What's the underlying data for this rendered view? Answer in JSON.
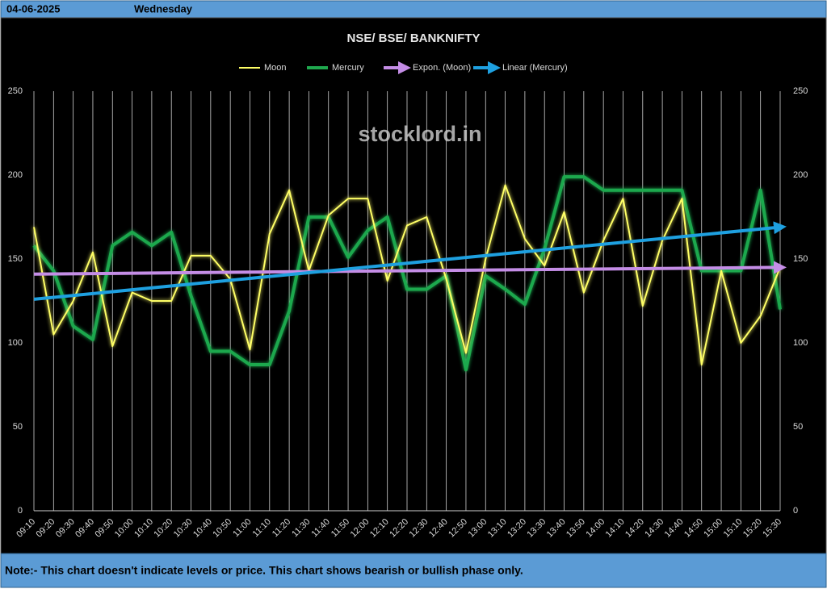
{
  "header": {
    "date": "04-06-2025",
    "weekday": "Wednesday"
  },
  "chart_data": {
    "type": "line",
    "title": "NSE/ BSE/ BANKNIFTY",
    "watermark": "stocklord.in",
    "categories": [
      "09:10",
      "09:20",
      "09:30",
      "09:40",
      "09:50",
      "10:00",
      "10:10",
      "10:20",
      "10:30",
      "10:40",
      "10:50",
      "11:00",
      "11:10",
      "11:20",
      "11:30",
      "11:40",
      "11:50",
      "12:00",
      "12:10",
      "12:20",
      "12:30",
      "12:40",
      "12:50",
      "13:00",
      "13:10",
      "13:20",
      "13:30",
      "13:40",
      "13:50",
      "14:00",
      "14:10",
      "14:20",
      "14:30",
      "14:40",
      "14:50",
      "15:00",
      "15:10",
      "15:20",
      "15:30"
    ],
    "series": [
      {
        "name": "Moon",
        "color": "#ffff66",
        "width": 2,
        "values": [
          169,
          105,
          125,
          154,
          98,
          130,
          125,
          125,
          152,
          152,
          138,
          96,
          165,
          191,
          143,
          176,
          186,
          186,
          137,
          170,
          175,
          138,
          94,
          150,
          194,
          162,
          146,
          178,
          130,
          161,
          186,
          122,
          161,
          186,
          87,
          143,
          100,
          116,
          145
        ]
      },
      {
        "name": "Mercury",
        "color": "#1fa84e",
        "width": 4,
        "values": [
          158,
          143,
          110,
          102,
          158,
          166,
          158,
          166,
          128,
          95,
          95,
          87,
          87,
          119,
          175,
          175,
          151,
          167,
          175,
          132,
          132,
          140,
          84,
          140,
          132,
          123,
          156,
          199,
          199,
          191,
          191,
          191,
          191,
          191,
          143,
          143,
          143,
          191,
          120
        ]
      }
    ],
    "trendlines": [
      {
        "name": "Expon. (Moon)",
        "color": "#c48de6",
        "values": [
          141,
          145
        ]
      },
      {
        "name": "Linear (Mercury)",
        "color": "#1ea0e0",
        "values": [
          126,
          169
        ]
      }
    ],
    "ylim": [
      0,
      250
    ],
    "yticks": [
      0,
      50,
      100,
      150,
      200,
      250
    ],
    "y2lim": [
      0,
      250
    ],
    "y2ticks": [
      0,
      50,
      100,
      150,
      200,
      250
    ],
    "grid": "x",
    "legend": "top"
  },
  "footer": {
    "note": "Note:- This chart doesn't indicate levels or price. This chart shows bearish or bullish phase only."
  }
}
